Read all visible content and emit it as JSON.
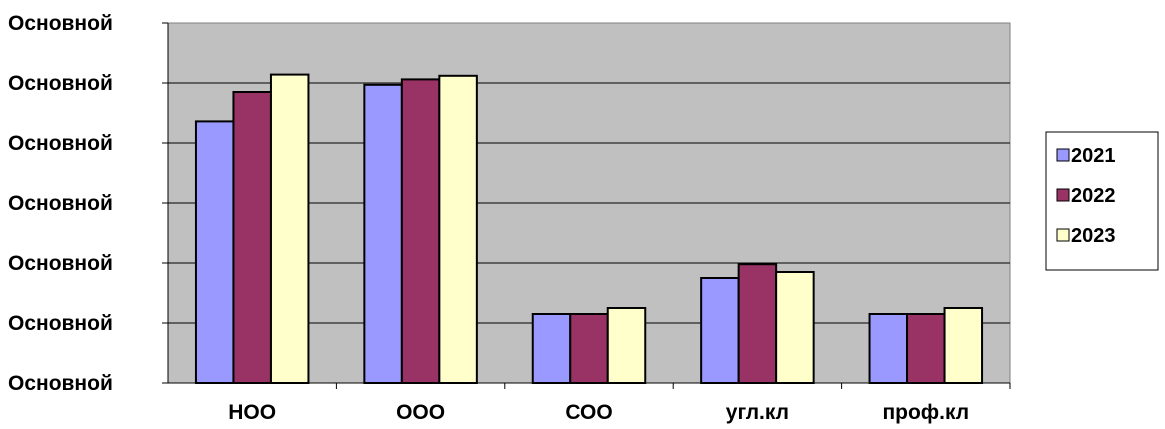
{
  "chart_data": {
    "type": "bar",
    "categories": [
      "НОО",
      "ООО",
      "СОО",
      "угл.кл",
      "проф.кл"
    ],
    "series": [
      {
        "name": "2021",
        "color": "#9999ff",
        "values": [
          436,
          497,
          115,
          175,
          115
        ]
      },
      {
        "name": "2022",
        "color": "#993366",
        "values": [
          485,
          506,
          115,
          198,
          115
        ]
      },
      {
        "name": "2023",
        "color": "#ffffcc",
        "values": [
          514,
          512,
          125,
          185,
          125
        ]
      }
    ],
    "ylim": [
      0,
      600
    ],
    "yticks": [
      0,
      100,
      200,
      300,
      400,
      500,
      600
    ],
    "ytick_labels": [
      "Основной",
      "Основной",
      "Основной",
      "Основной",
      "Основной",
      "Основной",
      "Основной"
    ],
    "plot_background": "#c0c0c0",
    "grid": true,
    "legend_position": "right"
  }
}
